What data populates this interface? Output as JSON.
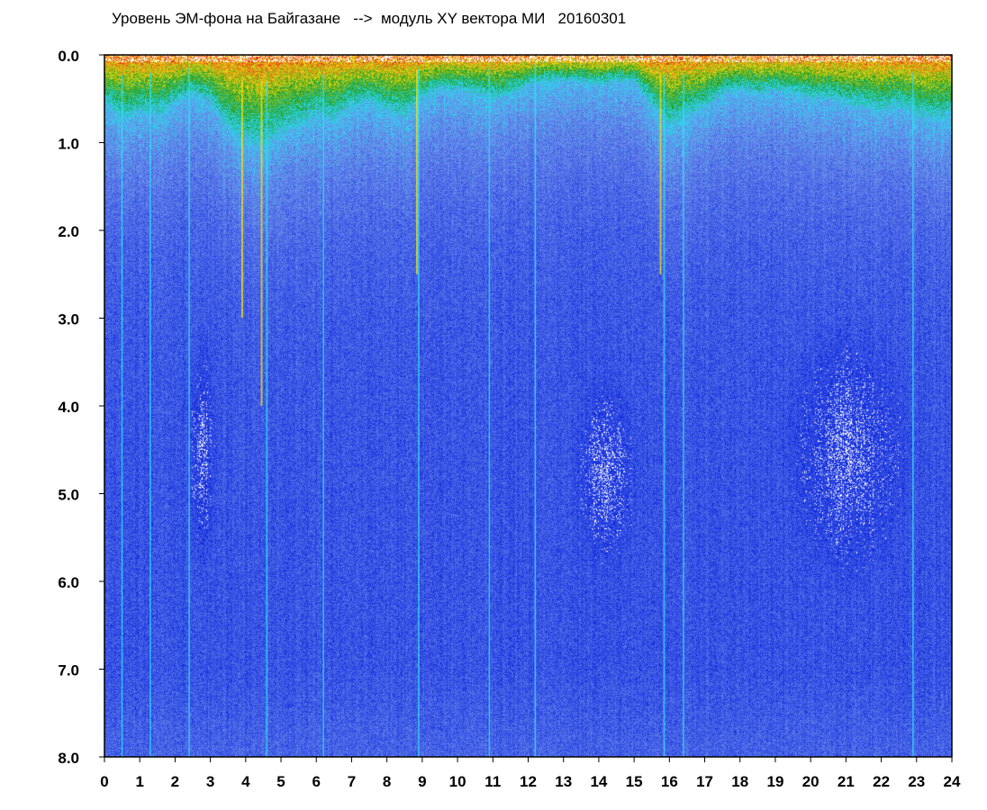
{
  "chart_data": {
    "type": "heatmap",
    "title": "Уровень ЭМ-фона на Байгазане   -->  модуль XY вектора МИ   20160301",
    "xlabel": "",
    "ylabel": "",
    "xlim": [
      0,
      24
    ],
    "ylim": [
      0,
      8
    ],
    "y_inverted": true,
    "x_ticks": [
      "0",
      "1",
      "2",
      "3",
      "4",
      "5",
      "6",
      "7",
      "8",
      "9",
      "10",
      "11",
      "12",
      "13",
      "14",
      "15",
      "16",
      "17",
      "18",
      "19",
      "20",
      "21",
      "22",
      "23",
      "24"
    ],
    "y_ticks": [
      "0.0",
      "1.0",
      "2.0",
      "3.0",
      "4.0",
      "5.0",
      "6.0",
      "7.0",
      "8.0"
    ],
    "colorscale": [
      "#0a1ed8",
      "#3c5ae6",
      "#6e8ce8",
      "#28dcf0",
      "#1e9b1e",
      "#f0dc14",
      "#e63214"
    ],
    "background": "#ffffff",
    "grid": false,
    "legend": "none",
    "surface_depth_profile": [
      [
        0.0,
        0.55
      ],
      [
        0.5,
        0.75
      ],
      [
        1.0,
        0.65
      ],
      [
        1.5,
        0.7
      ],
      [
        2.0,
        0.55
      ],
      [
        2.5,
        0.45
      ],
      [
        3.0,
        0.55
      ],
      [
        3.5,
        0.85
      ],
      [
        4.0,
        1.0
      ],
      [
        4.5,
        1.05
      ],
      [
        5.0,
        0.9
      ],
      [
        5.5,
        0.8
      ],
      [
        6.0,
        0.7
      ],
      [
        6.5,
        0.75
      ],
      [
        7.0,
        0.6
      ],
      [
        7.5,
        0.55
      ],
      [
        8.0,
        0.65
      ],
      [
        8.5,
        0.7
      ],
      [
        9.0,
        0.5
      ],
      [
        9.5,
        0.4
      ],
      [
        10.0,
        0.4
      ],
      [
        10.5,
        0.45
      ],
      [
        11.0,
        0.5
      ],
      [
        11.5,
        0.45
      ],
      [
        12.0,
        0.35
      ],
      [
        12.5,
        0.3
      ],
      [
        13.0,
        0.3
      ],
      [
        13.5,
        0.3
      ],
      [
        14.0,
        0.35
      ],
      [
        14.5,
        0.3
      ],
      [
        15.0,
        0.3
      ],
      [
        15.5,
        0.6
      ],
      [
        16.0,
        0.85
      ],
      [
        16.5,
        0.7
      ],
      [
        17.0,
        0.6
      ],
      [
        17.5,
        0.45
      ],
      [
        18.0,
        0.4
      ],
      [
        18.5,
        0.45
      ],
      [
        19.0,
        0.4
      ],
      [
        19.5,
        0.45
      ],
      [
        20.0,
        0.5
      ],
      [
        20.5,
        0.5
      ],
      [
        21.0,
        0.55
      ],
      [
        21.5,
        0.6
      ],
      [
        22.0,
        0.65
      ],
      [
        22.5,
        0.6
      ],
      [
        23.0,
        0.7
      ],
      [
        23.5,
        0.75
      ],
      [
        24.0,
        0.7
      ]
    ],
    "vertical_streaks": [
      {
        "x": 0.5,
        "depth": 8.0,
        "level": "cyan"
      },
      {
        "x": 1.3,
        "depth": 8.0,
        "level": "cyan"
      },
      {
        "x": 2.4,
        "depth": 8.0,
        "level": "cyan"
      },
      {
        "x": 3.9,
        "depth": 3.0,
        "level": "yellow"
      },
      {
        "x": 4.45,
        "depth": 4.0,
        "level": "yellow"
      },
      {
        "x": 4.6,
        "depth": 8.0,
        "level": "cyan"
      },
      {
        "x": 6.2,
        "depth": 8.0,
        "level": "cyan"
      },
      {
        "x": 8.85,
        "depth": 2.5,
        "level": "yellow"
      },
      {
        "x": 8.9,
        "depth": 8.0,
        "level": "cyan"
      },
      {
        "x": 10.9,
        "depth": 8.0,
        "level": "cyan"
      },
      {
        "x": 12.2,
        "depth": 8.0,
        "level": "cyan"
      },
      {
        "x": 15.75,
        "depth": 2.5,
        "level": "yellow"
      },
      {
        "x": 15.85,
        "depth": 8.0,
        "level": "cyan"
      },
      {
        "x": 16.4,
        "depth": 8.0,
        "level": "cyan"
      },
      {
        "x": 22.9,
        "depth": 8.0,
        "level": "cyan"
      }
    ],
    "quiet_zones": [
      {
        "x_range": [
          2.3,
          3.2
        ],
        "depth_range": [
          3.0,
          6.0
        ]
      },
      {
        "x_range": [
          19.0,
          23.0
        ],
        "depth_range": [
          2.8,
          6.2
        ]
      },
      {
        "x_range": [
          13.2,
          15.2
        ],
        "depth_range": [
          3.5,
          6.0
        ]
      }
    ]
  }
}
